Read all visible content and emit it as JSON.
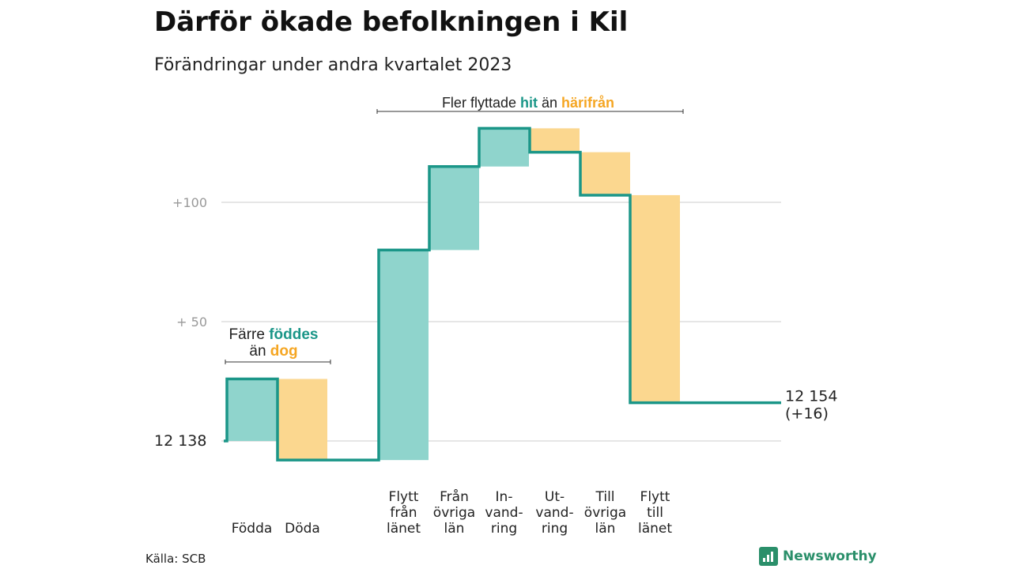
{
  "title": "Därför ökade befolkningen i Kil",
  "subtitle": "Förändringar under andra kvartalet 2023",
  "source": "Källa: SCB",
  "brand": "Newsworthy",
  "colors": {
    "gain": "#8fd4cc",
    "loss": "#fbd78f",
    "line": "#1b9688",
    "gainText": "#1b9688",
    "lossText": "#f5a623",
    "grid": "#dddddd"
  },
  "chart_data": {
    "type": "waterfall",
    "start_value": 12138,
    "end_label": "12 154",
    "end_change_label": "(+16)",
    "start_label": "12   138",
    "yticks": [
      {
        "value": 50,
        "label": "+  50"
      },
      {
        "value": 100,
        "label": "+100"
      }
    ],
    "ylim": [
      -8,
      135
    ],
    "steps": [
      {
        "label": [
          "Födda"
        ],
        "value": 26
      },
      {
        "label": [
          "Döda"
        ],
        "value": -34
      },
      {
        "label": [
          "Flytt",
          "från",
          "länet"
        ],
        "value": 88
      },
      {
        "label": [
          "Från",
          "övriga",
          "län"
        ],
        "value": 35
      },
      {
        "label": [
          "In-",
          "vand-",
          "ring"
        ],
        "value": 16
      },
      {
        "label": [
          "Ut-",
          "vand-",
          "ring"
        ],
        "value": -10
      },
      {
        "label": [
          "Till",
          "övriga",
          "län"
        ],
        "value": -18
      },
      {
        "label": [
          "Flytt",
          "till",
          "länet"
        ],
        "value": -87
      }
    ],
    "annotations": [
      {
        "lines": [
          [
            {
              "text": "Färre ",
              "style": "plain"
            },
            {
              "text": "föddes",
              "style": "gain"
            }
          ],
          [
            {
              "text": "än ",
              "style": "plain"
            },
            {
              "text": "dog",
              "style": "loss"
            }
          ]
        ],
        "from": 0,
        "to": 1
      },
      {
        "lines": [
          [
            {
              "text": "Fler flyttade ",
              "style": "plain"
            },
            {
              "text": "hit",
              "style": "gain"
            },
            {
              "text": "  än ",
              "style": "plain"
            },
            {
              "text": "härifrån",
              "style": "loss"
            }
          ]
        ],
        "from": 2,
        "to": 7
      }
    ]
  }
}
